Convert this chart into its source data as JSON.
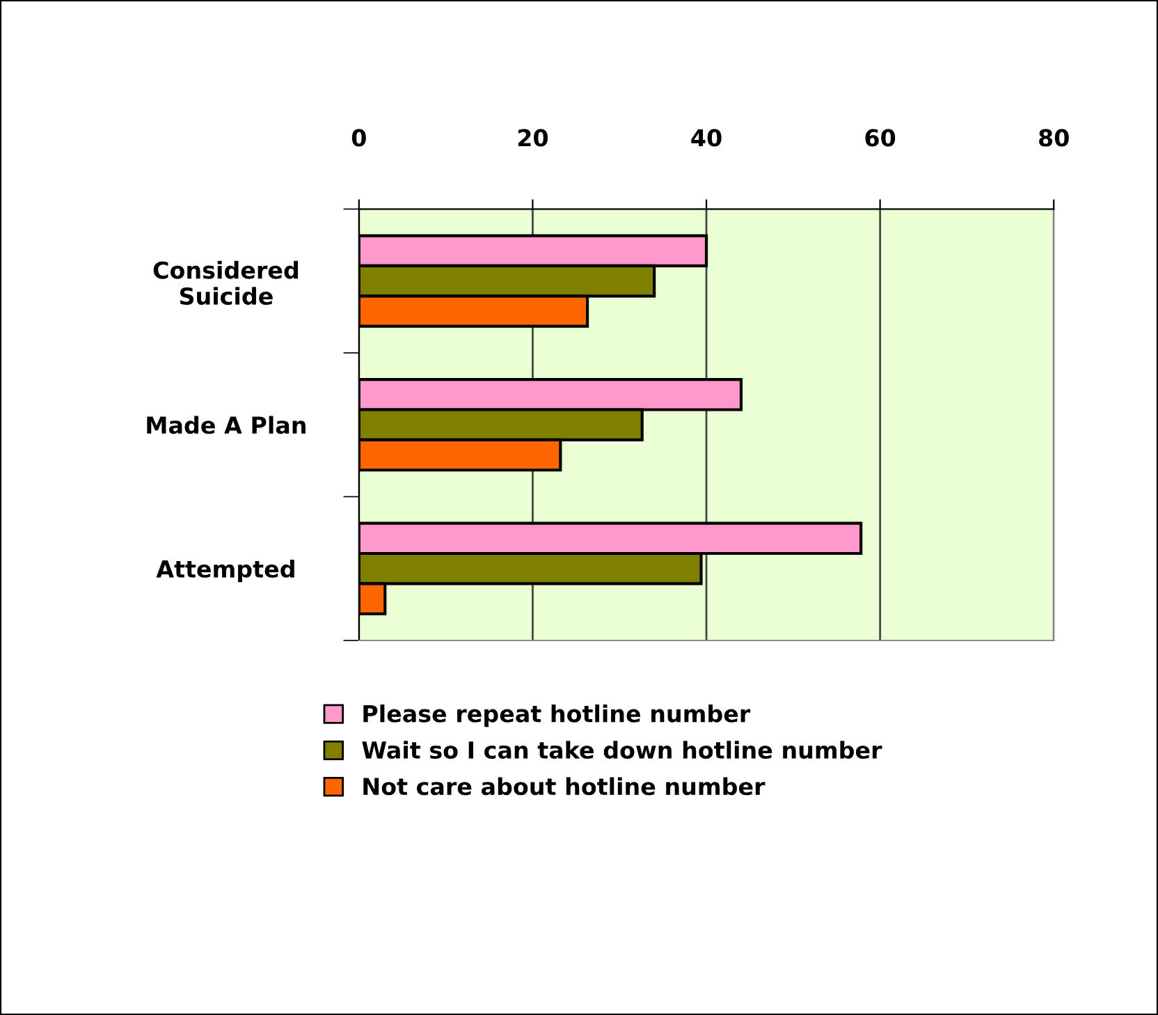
{
  "chart_data": {
    "type": "bar",
    "orientation": "horizontal",
    "categories": [
      "Considered\nSuicide",
      "Made A Plan",
      "Attempted"
    ],
    "series": [
      {
        "name": "Please repeat hotline number",
        "color": "#ff99cc",
        "values": [
          40.0,
          44.0,
          57.8
        ]
      },
      {
        "name": "Wait so I can take down hotline number",
        "color": "#808000",
        "values": [
          34.0,
          32.6,
          39.4
        ]
      },
      {
        "name": "Not care about hotline number",
        "color": "#ff6600",
        "values": [
          26.3,
          23.2,
          3.0
        ]
      }
    ],
    "xlim": [
      0,
      80
    ],
    "xticks": [
      0,
      20,
      40,
      60,
      80
    ],
    "grid": "x",
    "legend": "bottom"
  }
}
